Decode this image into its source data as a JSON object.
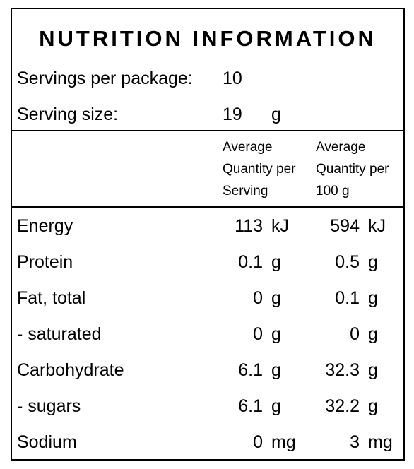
{
  "title": "NUTRITION INFORMATION",
  "servings": {
    "label": "Servings per package:",
    "value": "10"
  },
  "serving_size": {
    "label": "Serving size:",
    "value": "19",
    "unit": "g"
  },
  "headers": {
    "per_serving": [
      "Average",
      "Quantity per",
      "Serving"
    ],
    "per_100g": [
      "Average",
      "Quantity per",
      "100 g"
    ]
  },
  "rows": [
    {
      "label": "Energy",
      "serving_value": "113",
      "serving_unit": "kJ",
      "per100_value": "594",
      "per100_unit": "kJ"
    },
    {
      "label": "Protein",
      "serving_value": "0.1",
      "serving_unit": "g",
      "per100_value": "0.5",
      "per100_unit": "g"
    },
    {
      "label": "Fat, total",
      "serving_value": "0",
      "serving_unit": "g",
      "per100_value": "0.1",
      "per100_unit": "g"
    },
    {
      "label": "- saturated",
      "serving_value": "0",
      "serving_unit": "g",
      "per100_value": "0",
      "per100_unit": "g"
    },
    {
      "label": "Carbohydrate",
      "serving_value": "6.1",
      "serving_unit": "g",
      "per100_value": "32.3",
      "per100_unit": "g"
    },
    {
      "label": "- sugars",
      "serving_value": "6.1",
      "serving_unit": "g",
      "per100_value": "32.2",
      "per100_unit": "g"
    },
    {
      "label": "Sodium",
      "serving_value": "0",
      "serving_unit": "mg",
      "per100_value": "3",
      "per100_unit": "mg"
    }
  ]
}
